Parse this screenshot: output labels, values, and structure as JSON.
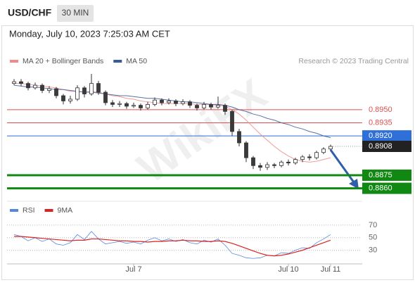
{
  "header": {
    "symbol": "USD/CHF",
    "interval": "30 MIN",
    "timestamp": "Monday, July 10, 2023 7:25:03 AM CET",
    "credit": "Research © 2023 Trading Central",
    "watermark": "WikiFX"
  },
  "chart_data": [
    {
      "type": "candlestick",
      "open": [
        0.898,
        0.8982,
        0.898,
        0.8975,
        0.8978,
        0.8972,
        0.8974,
        0.8966,
        0.896,
        0.8962,
        0.8975,
        0.8968,
        0.898,
        0.897,
        0.8958,
        0.8956,
        0.8957,
        0.8954,
        0.8955,
        0.8952,
        0.8956,
        0.8961,
        0.8958,
        0.896,
        0.8957,
        0.8959,
        0.8955,
        0.8952,
        0.8956,
        0.8953,
        0.8955,
        0.8948,
        0.8925,
        0.8912,
        0.8895,
        0.8886,
        0.8884,
        0.8887,
        0.8886,
        0.889,
        0.8889,
        0.8893,
        0.8896,
        0.8895,
        0.8901,
        0.8905
      ],
      "high": [
        0.8985,
        0.8985,
        0.8982,
        0.8981,
        0.898,
        0.8977,
        0.8976,
        0.8968,
        0.8966,
        0.8978,
        0.8977,
        0.8991,
        0.8983,
        0.8972,
        0.8961,
        0.896,
        0.8959,
        0.8958,
        0.8957,
        0.8959,
        0.8964,
        0.8963,
        0.8963,
        0.8962,
        0.8962,
        0.8961,
        0.8957,
        0.8959,
        0.8958,
        0.8965,
        0.8957,
        0.895,
        0.8928,
        0.8914,
        0.8897,
        0.8889,
        0.889,
        0.8889,
        0.8892,
        0.8893,
        0.8895,
        0.8898,
        0.8899,
        0.8903,
        0.8907,
        0.891
      ],
      "low": [
        0.8978,
        0.8977,
        0.8972,
        0.8973,
        0.8969,
        0.8969,
        0.8963,
        0.8956,
        0.8957,
        0.896,
        0.8964,
        0.8966,
        0.8967,
        0.8955,
        0.8953,
        0.8953,
        0.8951,
        0.8952,
        0.8949,
        0.895,
        0.8954,
        0.8955,
        0.8956,
        0.8954,
        0.8955,
        0.8952,
        0.8949,
        0.895,
        0.895,
        0.8951,
        0.8944,
        0.892,
        0.8908,
        0.889,
        0.8882,
        0.888,
        0.8881,
        0.8883,
        0.8884,
        0.8886,
        0.8887,
        0.889,
        0.8892,
        0.8893,
        0.8899,
        0.8903
      ],
      "close": [
        0.8982,
        0.898,
        0.8975,
        0.8978,
        0.8972,
        0.8974,
        0.8966,
        0.896,
        0.8962,
        0.8975,
        0.8968,
        0.898,
        0.897,
        0.8958,
        0.8956,
        0.8957,
        0.8954,
        0.8955,
        0.8952,
        0.8956,
        0.8961,
        0.8958,
        0.896,
        0.8957,
        0.8959,
        0.8955,
        0.8952,
        0.8956,
        0.8953,
        0.8955,
        0.8948,
        0.8925,
        0.8912,
        0.8895,
        0.8886,
        0.8884,
        0.8887,
        0.8886,
        0.889,
        0.8889,
        0.8893,
        0.8896,
        0.8895,
        0.8901,
        0.8905,
        0.8908
      ],
      "up_color": "#ffffff",
      "down_color": "#3a3a3a",
      "overlays": [
        {
          "name": "MA 20 + Bollinger Bands",
          "color": "#f08a8a",
          "values": [
            0.898,
            0.898,
            0.8979,
            0.8978,
            0.8977,
            0.8976,
            0.8975,
            0.8973,
            0.8971,
            0.8971,
            0.897,
            0.8971,
            0.897,
            0.8968,
            0.8966,
            0.8965,
            0.8963,
            0.8962,
            0.896,
            0.8959,
            0.8958,
            0.8957,
            0.8957,
            0.8957,
            0.8957,
            0.8957,
            0.8956,
            0.8956,
            0.8956,
            0.8955,
            0.8954,
            0.895,
            0.8945,
            0.8938,
            0.893,
            0.8922,
            0.8915,
            0.8908,
            0.8902,
            0.8897,
            0.8893,
            0.8891,
            0.889,
            0.8891,
            0.8893,
            0.8895
          ]
        },
        {
          "name": "MA 50",
          "color": "#3a5a9a",
          "values": [
            0.8978,
            0.8977,
            0.8976,
            0.8976,
            0.8975,
            0.8974,
            0.8973,
            0.8973,
            0.8972,
            0.8971,
            0.897,
            0.897,
            0.8969,
            0.8968,
            0.8967,
            0.8966,
            0.8966,
            0.8965,
            0.8964,
            0.8963,
            0.8963,
            0.8962,
            0.8961,
            0.896,
            0.8959,
            0.8959,
            0.8958,
            0.8957,
            0.8956,
            0.8956,
            0.8955,
            0.8953,
            0.895,
            0.8948,
            0.8945,
            0.8943,
            0.894,
            0.8938,
            0.8935,
            0.8933,
            0.893,
            0.8928,
            0.8925,
            0.8923,
            0.892,
            0.8918
          ]
        }
      ],
      "levels": [
        {
          "value": 0.895,
          "label": "0.8950",
          "color": "#e05050",
          "style": "line"
        },
        {
          "value": 0.8935,
          "label": "0.8935",
          "color": "#e05050",
          "style": "line"
        },
        {
          "value": 0.892,
          "label": "0.8920",
          "color": "#2f6fd8",
          "style": "box"
        },
        {
          "value": 0.8908,
          "label": "0.8908",
          "color": "#222222",
          "style": "dotted-box"
        },
        {
          "value": 0.8875,
          "label": "0.8875",
          "color": "#118811",
          "style": "thick-box"
        },
        {
          "value": 0.886,
          "label": "0.8860",
          "color": "#118811",
          "style": "thick-box"
        }
      ],
      "ylim": [
        0.885,
        0.8995
      ],
      "xlim": [
        -1,
        50
      ]
    },
    {
      "type": "line",
      "series": [
        {
          "name": "RSI",
          "color": "#5588dd",
          "values": [
            55,
            52,
            45,
            50,
            44,
            48,
            40,
            38,
            42,
            55,
            47,
            60,
            48,
            40,
            42,
            44,
            41,
            43,
            40,
            46,
            50,
            45,
            48,
            44,
            47,
            42,
            40,
            46,
            43,
            48,
            38,
            25,
            22,
            18,
            17,
            18,
            22,
            21,
            26,
            25,
            30,
            34,
            33,
            42,
            48,
            55
          ]
        },
        {
          "name": "9MA",
          "color": "#dd2222",
          "values": [
            52,
            52,
            51,
            50,
            49,
            48,
            47,
            46,
            45,
            46,
            46,
            48,
            48,
            47,
            46,
            45,
            45,
            44,
            44,
            43,
            44,
            44,
            45,
            45,
            46,
            45,
            45,
            44,
            44,
            45,
            44,
            41,
            37,
            33,
            29,
            25,
            22,
            21,
            22,
            24,
            27,
            30,
            34,
            38,
            42,
            46
          ]
        }
      ],
      "ylim": [
        15,
        80
      ],
      "yticks": [
        70,
        50,
        30
      ],
      "xlim": [
        -1,
        50
      ],
      "xticks": [
        {
          "value": 17,
          "label": "Jul 7"
        },
        {
          "value": 39,
          "label": "Jul 10"
        },
        {
          "value": 45,
          "label": "Jul 11"
        }
      ]
    }
  ]
}
